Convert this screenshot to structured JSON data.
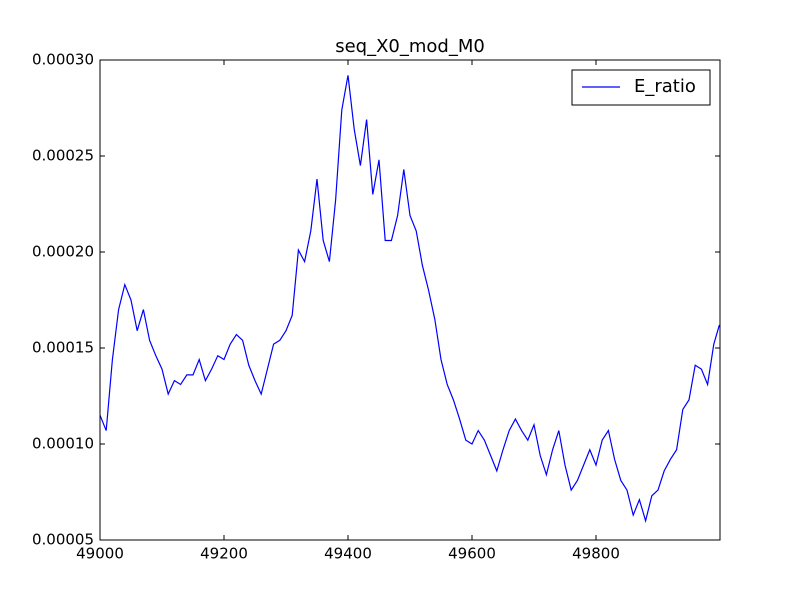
{
  "chart_data": {
    "type": "line",
    "title": "seq_X0_mod_M0",
    "x": [
      49000,
      49010,
      49020,
      49030,
      49040,
      49050,
      49060,
      49070,
      49080,
      49090,
      49100,
      49110,
      49120,
      49130,
      49140,
      49150,
      49160,
      49170,
      49180,
      49190,
      49200,
      49210,
      49220,
      49230,
      49240,
      49250,
      49260,
      49270,
      49280,
      49290,
      49300,
      49310,
      49320,
      49330,
      49340,
      49350,
      49360,
      49370,
      49380,
      49390,
      49400,
      49410,
      49420,
      49430,
      49440,
      49450,
      49460,
      49470,
      49480,
      49490,
      49500,
      49510,
      49520,
      49530,
      49540,
      49550,
      49560,
      49570,
      49580,
      49590,
      49600,
      49610,
      49620,
      49630,
      49640,
      49650,
      49660,
      49670,
      49680,
      49690,
      49700,
      49710,
      49720,
      49730,
      49740,
      49750,
      49760,
      49770,
      49780,
      49790,
      49800,
      49810,
      49820,
      49830,
      49840,
      49850,
      49860,
      49870,
      49880,
      49890,
      49900,
      49910,
      49920,
      49930,
      49940,
      49950,
      49960,
      49970,
      49980,
      49990,
      49999
    ],
    "series": [
      {
        "name": "E_ratio",
        "color": "#0000ff",
        "values": [
          0.000115,
          0.000107,
          0.000144,
          0.00017,
          0.000183,
          0.000175,
          0.000159,
          0.00017,
          0.000154,
          0.000146,
          0.000139,
          0.000126,
          0.000133,
          0.000131,
          0.000136,
          0.000136,
          0.000144,
          0.000133,
          0.000139,
          0.000146,
          0.000144,
          0.000152,
          0.000157,
          0.000154,
          0.000141,
          0.000133,
          0.000126,
          0.000139,
          0.000152,
          0.000154,
          0.000159,
          0.000167,
          0.000201,
          0.000195,
          0.000211,
          0.000238,
          0.000206,
          0.000195,
          0.000227,
          0.000274,
          0.000292,
          0.000264,
          0.000245,
          0.000269,
          0.00023,
          0.000248,
          0.000206,
          0.000206,
          0.000219,
          0.000243,
          0.000219,
          0.000211,
          0.000193,
          0.00018,
          0.000165,
          0.000144,
          0.000131,
          0.000123,
          0.000113,
          0.000102,
          0.0001,
          0.000107,
          0.000102,
          9.4e-05,
          8.6e-05,
          9.7e-05,
          0.000107,
          0.000113,
          0.000107,
          0.000102,
          0.00011,
          9.4e-05,
          8.4e-05,
          9.7e-05,
          0.000107,
          8.9e-05,
          7.6e-05,
          8.1e-05,
          8.9e-05,
          9.7e-05,
          8.9e-05,
          0.000102,
          0.000107,
          9.2e-05,
          8.1e-05,
          7.6e-05,
          6.3e-05,
          7.1e-05,
          6e-05,
          7.3e-05,
          7.6e-05,
          8.6e-05,
          9.2e-05,
          9.7e-05,
          0.000118,
          0.000123,
          0.000141,
          0.000139,
          0.000131,
          0.000152,
          0.000162
        ]
      }
    ],
    "xlim": [
      49000,
      50000
    ],
    "xticks": [
      49000,
      49200,
      49400,
      49600,
      49800
    ],
    "ylim": [
      5e-05,
      0.0003
    ],
    "yticks": [
      {
        "value": 5e-05,
        "label": "0.00005"
      },
      {
        "value": 0.0001,
        "label": "0.00010"
      },
      {
        "value": 0.00015,
        "label": "0.00015"
      },
      {
        "value": 0.0002,
        "label": "0.00020"
      },
      {
        "value": 0.00025,
        "label": "0.00025"
      },
      {
        "value": 0.0003,
        "label": "0.00030"
      }
    ],
    "legend": "upper right"
  }
}
